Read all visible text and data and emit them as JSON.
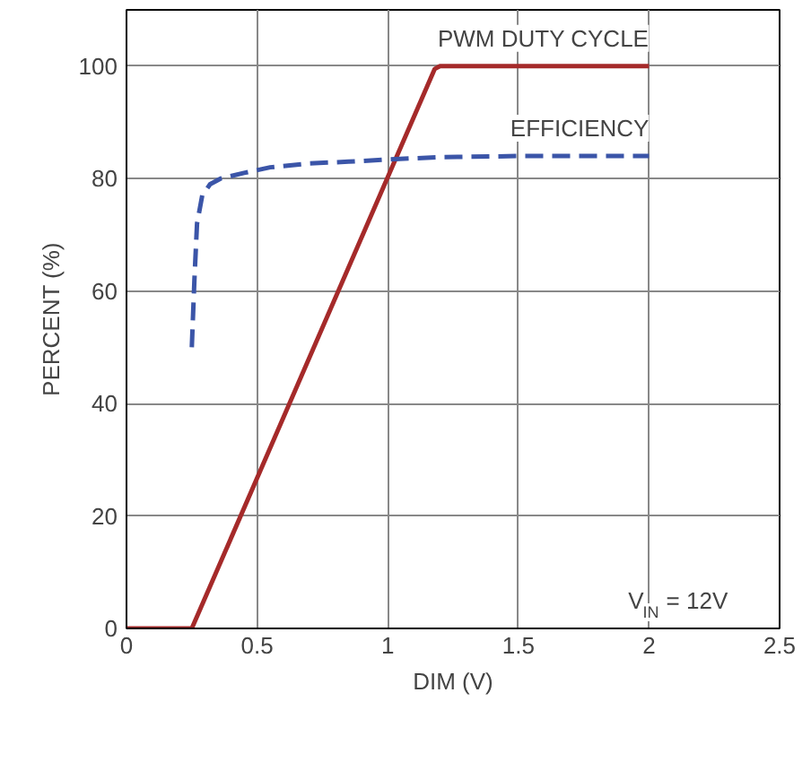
{
  "chart_data": {
    "type": "line",
    "xlabel": "DIM (V)",
    "ylabel": "PERCENT (%)",
    "xlim": [
      0,
      2.5
    ],
    "ylim": [
      0,
      110
    ],
    "xticks": [
      0,
      0.5,
      1,
      1.5,
      2,
      2.5
    ],
    "yticks": [
      0,
      20,
      40,
      60,
      80,
      100
    ],
    "grid": true,
    "series": [
      {
        "name": "PWM DUTY CYCLE",
        "color": "#a52a2a",
        "line_style": "solid",
        "x": [
          0,
          0.25,
          1.18,
          1.2,
          1.5,
          2
        ],
        "values": [
          0,
          0,
          99.5,
          100,
          100,
          100
        ]
      },
      {
        "name": "EFFICIENCY",
        "color": "#3b55a8",
        "line_style": "dashed",
        "x": [
          0.25,
          0.26,
          0.27,
          0.29,
          0.32,
          0.36,
          0.45,
          0.55,
          0.7,
          0.85,
          1,
          1.2,
          1.5,
          1.75,
          2
        ],
        "values": [
          50,
          62,
          72,
          77,
          79,
          80,
          81,
          82,
          82.7,
          83,
          83.4,
          83.8,
          84,
          84,
          84
        ]
      }
    ],
    "annotations": [
      "V$_{IN}$ = 12V"
    ]
  }
}
